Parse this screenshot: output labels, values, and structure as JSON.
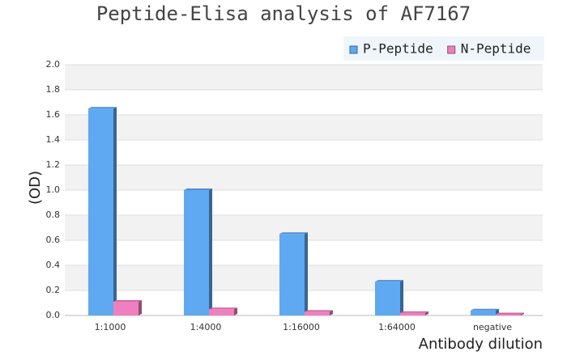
{
  "chart_data": {
    "type": "bar",
    "title": "Peptide-Elisa analysis of AF7167",
    "x_label": "Antibody dilution",
    "y_label": "(OD)",
    "categories": [
      "1:1000",
      "1:4000",
      "1:16000",
      "1:64000",
      "negative"
    ],
    "series": [
      {
        "name": "P-Peptide",
        "color": "#5fa8f2",
        "values": [
          1.65,
          1.0,
          0.65,
          0.27,
          0.04
        ]
      },
      {
        "name": "N-Peptide",
        "color": "#f07fbf",
        "values": [
          0.11,
          0.05,
          0.03,
          0.02,
          0.01
        ]
      }
    ],
    "ylim": [
      0,
      2
    ],
    "yticks": [
      {
        "value": 0,
        "label": "0.0"
      },
      0.2,
      0.4,
      0.6,
      0.8,
      {
        "value": 1,
        "label": "1.0"
      },
      1.2,
      1.4,
      1.6,
      1.8,
      {
        "value": 2,
        "label": "2.0"
      }
    ],
    "grid": true,
    "legend": "top-right"
  }
}
